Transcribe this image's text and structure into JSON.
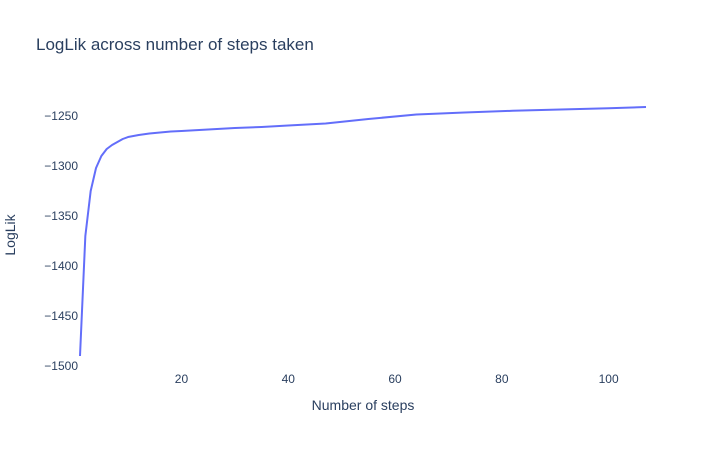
{
  "chart_data": {
    "type": "line",
    "title": "LogLik across number of steps taken",
    "xlabel": "Number of steps",
    "ylabel": "LogLik",
    "xlim": [
      1,
      107
    ],
    "ylim": [
      -1500,
      -1234
    ],
    "xticks": [
      20,
      40,
      60,
      80,
      100
    ],
    "yticks": [
      -1500,
      -1450,
      -1400,
      -1350,
      -1300,
      -1250
    ],
    "ytick_labels": [
      "−1500",
      "−1450",
      "−1400",
      "−1350",
      "−1300",
      "−1250"
    ],
    "grid": false,
    "line_color": "#636efa",
    "series": [
      {
        "x": [
          1,
          2,
          3,
          4,
          5,
          6,
          7,
          8,
          9,
          10,
          12,
          14,
          16,
          18,
          20,
          25,
          30,
          35,
          40,
          47,
          55,
          64,
          73,
          82,
          91,
          100,
          107
        ],
        "y": [
          -1490,
          -1370,
          -1325,
          -1302,
          -1290,
          -1283,
          -1279,
          -1276,
          -1273,
          -1271,
          -1269,
          -1267.5,
          -1266.5,
          -1265.5,
          -1265,
          -1263.5,
          -1262,
          -1261,
          -1259.5,
          -1257.5,
          -1253,
          -1248.5,
          -1246.5,
          -1244.8,
          -1243.5,
          -1242.2,
          -1241
        ]
      }
    ]
  }
}
